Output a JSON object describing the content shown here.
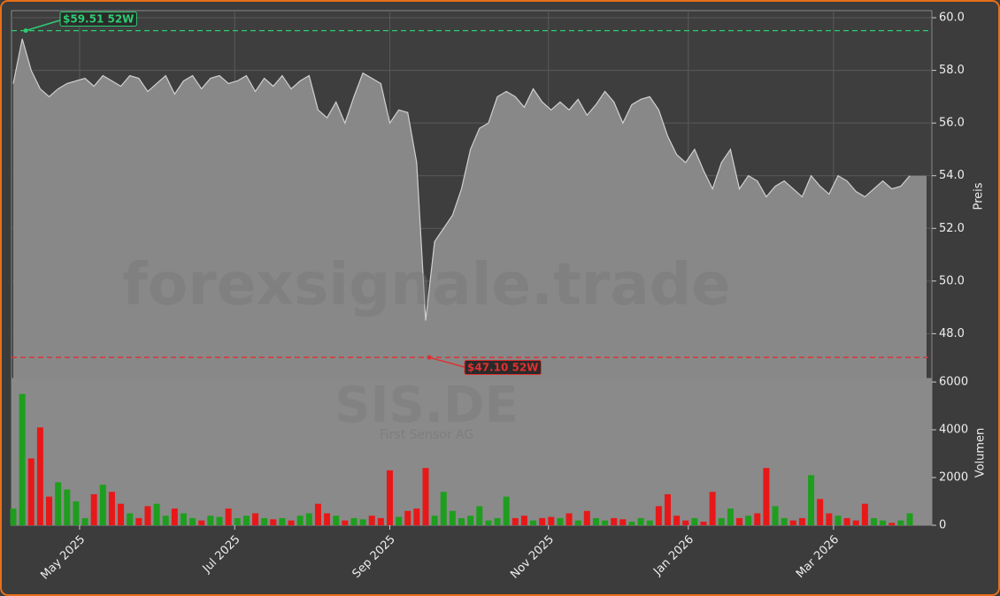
{
  "chart_data": {
    "type": "price-volume",
    "watermark": "forexsignale.trade",
    "symbol": "SIS.DE",
    "company": "First Sensor AG",
    "ylabel": "Preis",
    "y2label": "Volumen",
    "xlim": [
      0,
      100
    ],
    "xticks": [
      {
        "value": 7.4,
        "label": "May 2025"
      },
      {
        "value": 24.7,
        "label": "Jul 2025"
      },
      {
        "value": 42,
        "label": "Sep 2025"
      },
      {
        "value": 59.7,
        "label": "Nov 2025"
      },
      {
        "value": 75.3,
        "label": "Jan 2026"
      },
      {
        "value": 91.5,
        "label": "Mar 2026"
      }
    ],
    "ylim": [
      46.3,
      60.27
    ],
    "yticks": [
      {
        "value": 48,
        "label": "48.0"
      },
      {
        "value": 50,
        "label": "50.0"
      },
      {
        "value": 52,
        "label": "52.0"
      },
      {
        "value": 54,
        "label": "54.0"
      },
      {
        "value": 56,
        "label": "56.0"
      },
      {
        "value": 58,
        "label": "58.0"
      },
      {
        "value": 60,
        "label": "60.0"
      }
    ],
    "y2lim": [
      0,
      6150
    ],
    "y2ticks": [
      0,
      2000,
      4000,
      6000
    ],
    "high": {
      "value": 59.51,
      "label": "$59.51 52W",
      "color": "#2ecc71"
    },
    "low": {
      "value": 47.1,
      "label": "$47.10 52W",
      "color": "#e03030"
    },
    "up_color": "#1e9e1e",
    "down_color": "#e81818",
    "series": [
      {
        "name": "Preis",
        "color": "#d0d0d0",
        "values": [
          57.5,
          59.2,
          58,
          57.3,
          57,
          57.3,
          57.5,
          57.6,
          57.7,
          57.4,
          57.8,
          57.6,
          57.4,
          57.8,
          57.7,
          57.2,
          57.5,
          57.8,
          57.1,
          57.6,
          57.8,
          57.3,
          57.7,
          57.8,
          57.5,
          57.6,
          57.8,
          57.2,
          57.7,
          57.4,
          57.8,
          57.3,
          57.6,
          57.8,
          56.5,
          56.2,
          56.8,
          56.0,
          57.0,
          57.9,
          57.7,
          57.5,
          56.0,
          56.5,
          56.4,
          54.5,
          48.5,
          51.5,
          52.0,
          52.5,
          53.5,
          55.0,
          55.8,
          56.0,
          57.0,
          57.2,
          57.0,
          56.6,
          57.3,
          56.8,
          56.5,
          56.8,
          56.5,
          56.9,
          56.3,
          56.7,
          57.2,
          56.8,
          56.0,
          56.7,
          56.9,
          57.0,
          56.5,
          55.5,
          54.8,
          54.5,
          55.0,
          54.2,
          53.5,
          54.5,
          55.0,
          53.5,
          54.0,
          53.8,
          53.2,
          53.6,
          53.8,
          53.5,
          53.2,
          54.0,
          53.6,
          53.3,
          54.0,
          53.8,
          53.4,
          53.2,
          53.5,
          53.8,
          53.5,
          53.6,
          54.0
        ]
      },
      {
        "name": "Volumen",
        "axis": "y2",
        "values": [
          700,
          5500,
          2800,
          4100,
          1200,
          1800,
          1500,
          1000,
          300,
          1300,
          1700,
          1400,
          900,
          500,
          300,
          800,
          900,
          400,
          700,
          500,
          300,
          200,
          400,
          350,
          700,
          300,
          400,
          500,
          300,
          250,
          300,
          200,
          400,
          500,
          900,
          500,
          400,
          200,
          300,
          250,
          400,
          300,
          2300,
          350,
          600,
          700,
          2400,
          400,
          1400,
          600,
          300,
          400,
          800,
          200,
          300,
          1200,
          300,
          400,
          200,
          300,
          350,
          300,
          500,
          200,
          600,
          300,
          200,
          300,
          250,
          150,
          300,
          200,
          800,
          1300,
          400,
          200,
          300,
          150,
          1400,
          300,
          700,
          300,
          400,
          500,
          2400,
          800,
          300,
          200,
          300,
          2100,
          1100,
          500,
          400,
          300,
          200,
          900,
          300,
          200,
          100,
          200,
          500
        ]
      }
    ]
  }
}
